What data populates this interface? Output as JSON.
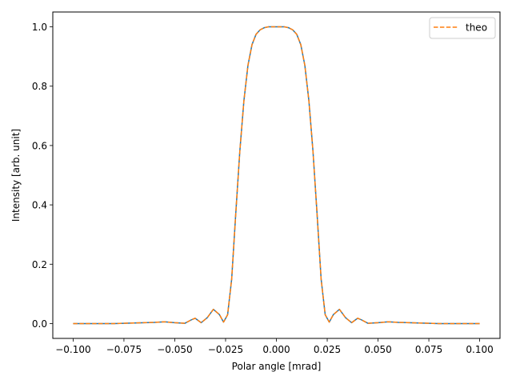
{
  "chart_data": {
    "type": "line",
    "xlabel": "Polar angle [mrad]",
    "ylabel": "Intensity [arb. unit]",
    "xlim": [
      -0.11,
      0.11
    ],
    "ylim": [
      -0.05,
      1.05
    ],
    "xticks": [
      -0.1,
      -0.075,
      -0.05,
      -0.025,
      0.0,
      0.025,
      0.05,
      0.075,
      0.1
    ],
    "xtick_labels": [
      "−0.100",
      "−0.075",
      "−0.050",
      "−0.025",
      "0.000",
      "0.025",
      "0.050",
      "0.075",
      "0.100"
    ],
    "yticks": [
      0.0,
      0.2,
      0.4,
      0.6,
      0.8,
      1.0
    ],
    "ytick_labels": [
      "0.0",
      "0.2",
      "0.4",
      "0.6",
      "0.8",
      "1.0"
    ],
    "grid": false,
    "legend_position": "top-right",
    "x": [
      -0.1,
      -0.09,
      -0.08,
      -0.07,
      -0.06,
      -0.055,
      -0.05,
      -0.045,
      -0.042,
      -0.04,
      -0.037,
      -0.034,
      -0.031,
      -0.028,
      -0.026,
      -0.024,
      -0.022,
      -0.02,
      -0.018,
      -0.016,
      -0.014,
      -0.012,
      -0.01,
      -0.008,
      -0.006,
      -0.004,
      -0.002,
      0.0,
      0.002,
      0.004,
      0.006,
      0.008,
      0.01,
      0.012,
      0.014,
      0.016,
      0.018,
      0.02,
      0.022,
      0.024,
      0.026,
      0.028,
      0.031,
      0.034,
      0.037,
      0.04,
      0.042,
      0.045,
      0.05,
      0.055,
      0.06,
      0.07,
      0.08,
      0.09,
      0.1
    ],
    "series": [
      {
        "name": "",
        "color": "#1f77b4",
        "style": "solid",
        "values": [
          0.0,
          0.0,
          0.0,
          0.002,
          0.004,
          0.006,
          0.003,
          0.001,
          0.012,
          0.018,
          0.003,
          0.02,
          0.048,
          0.03,
          0.005,
          0.03,
          0.15,
          0.37,
          0.58,
          0.75,
          0.87,
          0.94,
          0.975,
          0.99,
          0.997,
          1.0,
          1.0,
          1.0,
          1.0,
          1.0,
          0.997,
          0.99,
          0.975,
          0.94,
          0.87,
          0.75,
          0.58,
          0.37,
          0.15,
          0.03,
          0.005,
          0.03,
          0.048,
          0.02,
          0.003,
          0.018,
          0.012,
          0.001,
          0.003,
          0.006,
          0.004,
          0.002,
          0.0,
          0.0,
          0.0
        ]
      },
      {
        "name": "theo",
        "color": "#ff7f0e",
        "style": "dashed",
        "values": [
          0.0,
          0.0,
          0.0,
          0.002,
          0.004,
          0.006,
          0.003,
          0.001,
          0.012,
          0.018,
          0.003,
          0.02,
          0.048,
          0.03,
          0.005,
          0.03,
          0.15,
          0.37,
          0.58,
          0.75,
          0.87,
          0.94,
          0.975,
          0.99,
          0.997,
          1.0,
          1.0,
          1.0,
          1.0,
          1.0,
          0.997,
          0.99,
          0.975,
          0.94,
          0.87,
          0.75,
          0.58,
          0.37,
          0.15,
          0.03,
          0.005,
          0.03,
          0.048,
          0.02,
          0.003,
          0.018,
          0.012,
          0.001,
          0.003,
          0.006,
          0.004,
          0.002,
          0.0,
          0.0,
          0.0
        ]
      }
    ]
  }
}
